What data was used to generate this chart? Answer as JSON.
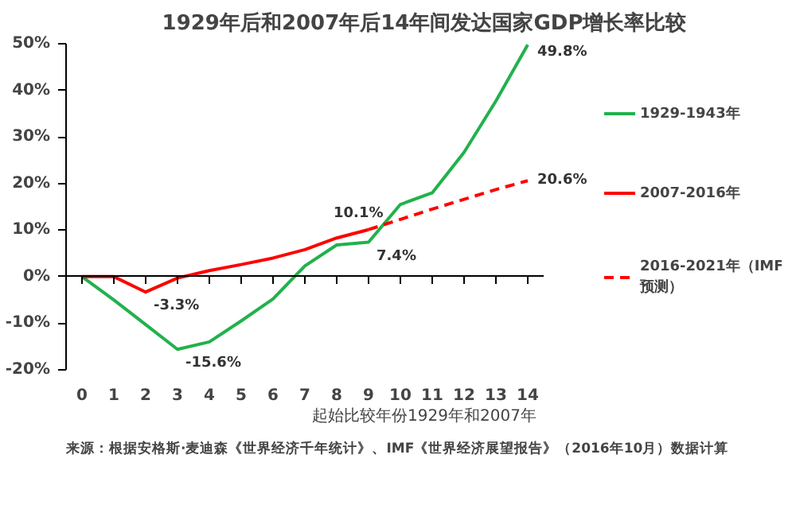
{
  "chart_data": {
    "type": "line",
    "title": "1929年后和2007年后14年间发达国家GDP增长率比较",
    "xlabel": "起始比较年份1929年和2007年",
    "x": [
      0,
      1,
      2,
      3,
      4,
      5,
      6,
      7,
      8,
      9,
      10,
      11,
      12,
      13,
      14
    ],
    "series": [
      {
        "name": "1929-1943年",
        "color": "#22b14c",
        "values": [
          0,
          -5,
          -10.3,
          -15.6,
          -14,
          -9.5,
          -4.8,
          2.3,
          6.8,
          7.4,
          15.5,
          18,
          26.7,
          37.7,
          49.8
        ]
      },
      {
        "name": "2007-2016年",
        "color": "#ff0000",
        "x": [
          0,
          1,
          2,
          3,
          4,
          5,
          6,
          7,
          8,
          9
        ],
        "values": [
          0,
          0,
          -3.3,
          -0.3,
          1.3,
          2.6,
          4,
          5.8,
          8.3,
          10.1
        ]
      },
      {
        "name": "2016-2021年（IMF\n预测）",
        "color": "#ff0000",
        "line_style": "dashed",
        "x": [
          9,
          10,
          11,
          12,
          13,
          14
        ],
        "values": [
          10.1,
          12.3,
          14.5,
          16.6,
          18.7,
          20.6
        ]
      }
    ],
    "xlim": [
      -0.5,
      14.5
    ],
    "xticks": [
      0,
      1,
      2,
      3,
      4,
      5,
      6,
      7,
      8,
      9,
      10,
      11,
      12,
      13,
      14
    ],
    "ylim": [
      -20,
      50
    ],
    "yticks": [
      {
        "value": -20,
        "label": "-20%"
      },
      {
        "value": -10,
        "label": "-10%"
      },
      {
        "value": 0,
        "label": "0%"
      },
      {
        "value": 10,
        "label": "10%"
      },
      {
        "value": 20,
        "label": "20%"
      },
      {
        "value": 30,
        "label": "30%"
      },
      {
        "value": 40,
        "label": "40%"
      },
      {
        "value": 50,
        "label": "50%"
      }
    ],
    "annotations": [
      {
        "text": "-3.3%",
        "x": 2,
        "y": -3.3
      },
      {
        "text": "-15.6%",
        "x": 3,
        "y": -15.6
      },
      {
        "text": "7.4%",
        "x": 9,
        "y": 7.4
      },
      {
        "text": "10.1%",
        "x": 9,
        "y": 10.1
      },
      {
        "text": "49.8%",
        "x": 14,
        "y": 49.8
      },
      {
        "text": "20.6%",
        "x": 14,
        "y": 20.6
      },
      "来源：根据安格斯·麦迪森《世界经济千年统计》、IMF《世界经济展望报告》（2016年10月）数据计算"
    ],
    "legend": "right"
  }
}
